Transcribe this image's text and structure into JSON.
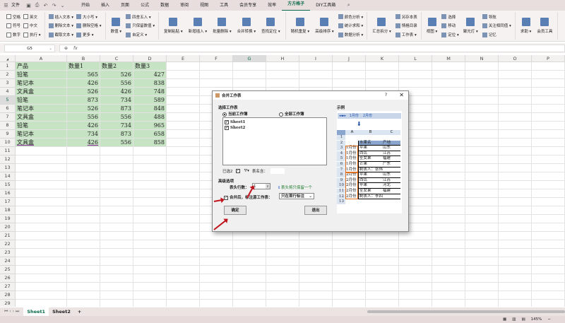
{
  "menu": {
    "file": "文件",
    "tabs": [
      "开始",
      "插入",
      "页面",
      "公式",
      "数据",
      "审阅",
      "视图",
      "工具",
      "会员专享",
      "效率",
      "方方格子",
      "DIY工具箱"
    ],
    "active_tab": "方方格子"
  },
  "ribbon": {
    "groups": [
      [
        {
          "small": [
            "空格",
            "符号",
            "数字"
          ],
          "check": true
        },
        {
          "small": [
            "英文",
            "中文",
            "执行 ▾"
          ],
          "check": true
        }
      ],
      [
        {
          "small": [
            "插入文本 ▾",
            "删除文本 ▾",
            "截取文本 ▾"
          ]
        },
        {
          "small": [
            "大小写 ▾",
            "删除空格 ▾",
            "更多 ▾"
          ]
        }
      ],
      [
        {
          "big": "数值 ▾"
        },
        {
          "small": [
            "四舍五入 ▾",
            "只保留数值 ▾",
            "自定义 ▾"
          ]
        }
      ],
      [
        {
          "big": "复制粘贴 ▾"
        },
        {
          "big": "新增插入 ▾"
        },
        {
          "big": "批量删除 ▾"
        },
        {
          "big": "合并转换 ▾"
        },
        {
          "big": "查找定位 ▾"
        }
      ],
      [
        {
          "big": "随机重复 ▾"
        },
        {
          "big": "高级排序 ▾"
        },
        {
          "small": [
            "颜色分析 ▾",
            "统计求和 ▾",
            "数据分析 ▾"
          ]
        }
      ],
      [
        {
          "big": "汇总拆分 ▾"
        },
        {
          "small": [
            "另存本表",
            "情格目录",
            "工作表 ▾"
          ]
        }
      ],
      [
        {
          "big": "视图 ▾"
        },
        {
          "small": [
            "选择",
            "移动",
            "定位 ▾"
          ]
        },
        {
          "big": "聚光灯 ▾"
        },
        {
          "small": [
            "导航",
            "关注相同值 ▾",
            "记忆"
          ]
        }
      ],
      [
        {
          "big": "求助 ▾"
        },
        {
          "big": "会员工具"
        }
      ]
    ]
  },
  "formula_bar": {
    "name_box": "G5",
    "fx": "fx",
    "value": ""
  },
  "sheet": {
    "columns": [
      "A",
      "B",
      "C",
      "D",
      "E",
      "F",
      "G",
      "H",
      "I",
      "J",
      "K",
      "L",
      "M",
      "N",
      "O",
      "P",
      "Q"
    ],
    "selected_col": "G",
    "selected_row": 5,
    "rows": [
      [
        "产品",
        "数量1",
        "数量2",
        "数量3"
      ],
      [
        "铅笔",
        "565",
        "526",
        "427"
      ],
      [
        "笔记本",
        "426",
        "556",
        "838"
      ],
      [
        "文具盒",
        "526",
        "426",
        "748"
      ],
      [
        "铅笔",
        "873",
        "734",
        "589"
      ],
      [
        "笔记本",
        "526",
        "873",
        "848"
      ],
      [
        "文具盒",
        "556",
        "556",
        "488"
      ],
      [
        "铅笔",
        "426",
        "734",
        "965"
      ],
      [
        "笔记本",
        "734",
        "873",
        "658"
      ],
      [
        "文具盒",
        "426",
        "556",
        "858"
      ]
    ],
    "row_count": 29
  },
  "sheet_tabs": [
    "Sheet1",
    "Sheet2"
  ],
  "active_sheet": "Sheet1",
  "add_sheet": "+",
  "status": {
    "zoom": "145%"
  },
  "dialog": {
    "title": "合并工作表",
    "help": "?",
    "close": "✕",
    "select_section": "选择工作表",
    "radio_current": "当前工作簿",
    "radio_all": "全部工作簿",
    "radio_selected": "current",
    "sheets": [
      {
        "name": "Sheet1",
        "checked": true
      },
      {
        "name": "Sheet2",
        "checked": true
      }
    ],
    "selected_count": "已选2",
    "table_name_label": "表名含：",
    "table_name_value": "",
    "advanced_section": "高级选项",
    "header_rows_label": "表头行数：",
    "header_rows_value": "1",
    "header_hint": "表头将只保留一个",
    "mark_label": "合并后，标注源工作表：",
    "mark_checked": true,
    "mark_option": "只在首行标注",
    "ok": "确定",
    "cancel": "退出",
    "example_section": "示例",
    "example": {
      "tabs": [
        "1月份",
        "2月份"
      ],
      "cols": [
        "A",
        "B",
        "C"
      ],
      "rows": [
        [
          "",
          "",
          ""
        ],
        [
          "",
          "水果名",
          "产地"
        ],
        [
          "1月份",
          "苹果",
          "山东"
        ],
        [
          "1月份",
          "西瓜",
          "江苏"
        ],
        [
          "1月份",
          "圣女果",
          "福建"
        ],
        [
          "1月份",
          "芒果",
          "广东"
        ],
        [
          "1月份",
          "制表人：张伟",
          ""
        ],
        [
          "2月份",
          "苹果",
          "山东"
        ],
        [
          "2月份",
          "西瓜",
          "江苏"
        ],
        [
          "2月份",
          "苹果",
          "河北"
        ],
        [
          "2月份",
          "圣女果",
          "福建"
        ],
        [
          "2月份",
          "制表人：李四",
          ""
        ],
        [
          "",
          "",
          ""
        ]
      ]
    },
    "accent": "#c0141c"
  }
}
